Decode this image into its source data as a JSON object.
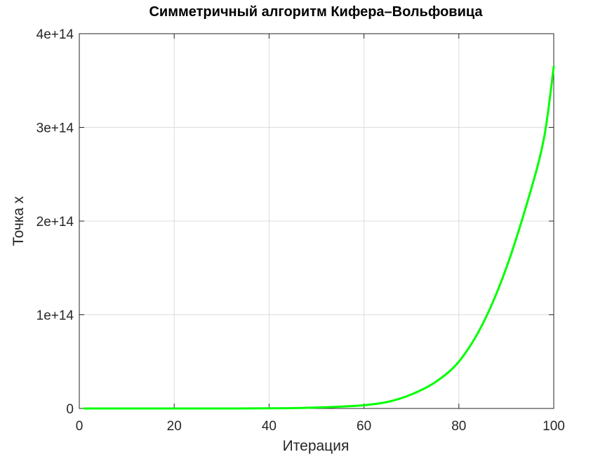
{
  "chart_data": {
    "type": "line",
    "title": "Симметричный алгоритм Кифера–Вольфовица",
    "xlabel": "Итерация",
    "ylabel": "Точка x",
    "xlim": [
      0,
      100
    ],
    "ylim": [
      0,
      400000000000000.0
    ],
    "grid": true,
    "x_ticks": [
      0,
      20,
      40,
      60,
      80,
      100
    ],
    "x_tick_labels": [
      "0",
      "20",
      "40",
      "60",
      "80",
      "100"
    ],
    "y_ticks": [
      0,
      100000000000000.0,
      200000000000000.0,
      300000000000000.0,
      400000000000000.0
    ],
    "y_tick_labels": [
      "0",
      "1e+14",
      "2e+14",
      "3e+14",
      "4e+14"
    ],
    "series": [
      {
        "name": "",
        "color": "#00ff00",
        "x": [
          1,
          10,
          20,
          30,
          40,
          45,
          50,
          55,
          60,
          65,
          70,
          75,
          80,
          85,
          90,
          95,
          98,
          100
        ],
        "y": [
          0,
          0,
          0,
          0,
          150000000000.0,
          400000000000.0,
          1000000000000.0,
          2000000000000.0,
          3500000000000.0,
          7000000000000.0,
          15000000000000.0,
          28000000000000.0,
          50000000000000.0,
          90000000000000.0,
          150000000000000.0,
          230000000000000.0,
          290000000000000.0,
          365000000000000.0
        ]
      }
    ]
  }
}
